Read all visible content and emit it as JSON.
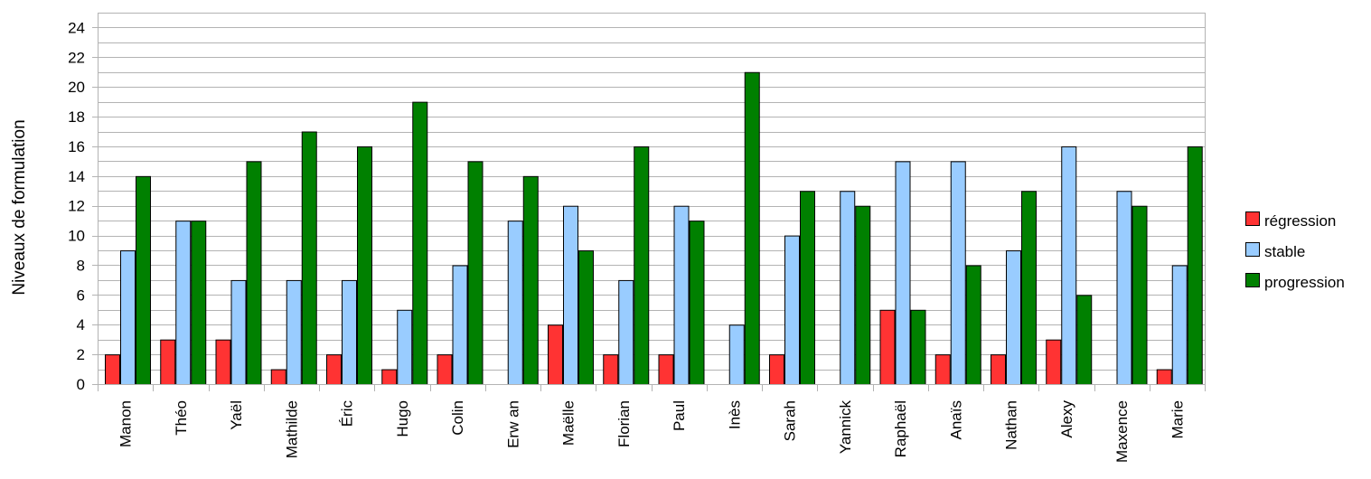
{
  "chart_data": {
    "type": "bar",
    "title": "",
    "xlabel": "",
    "ylabel": "Niveaux de formulation",
    "ylim": [
      0,
      25
    ],
    "yticks": [
      0,
      2,
      4,
      6,
      8,
      10,
      12,
      14,
      16,
      18,
      20,
      22,
      24
    ],
    "grid": true,
    "legend_position": "right",
    "categories": [
      "Manon",
      "Théo",
      "Yaël",
      "Mathilde",
      "Éric",
      "Hugo",
      "Colin",
      "Erw an",
      "Maëlle",
      "Florian",
      "Paul",
      "Inès",
      "Sarah",
      "Yannick",
      "Raphaël",
      "Anaïs",
      "Nathan",
      "Alexy",
      "Maxence",
      "Marie"
    ],
    "series": [
      {
        "name": "régression",
        "color": "#ff3333",
        "values": [
          2,
          3,
          3,
          1,
          2,
          1,
          2,
          0,
          4,
          2,
          2,
          0,
          2,
          0,
          5,
          2,
          2,
          3,
          0,
          1
        ]
      },
      {
        "name": "stable",
        "color": "#99ccff",
        "values": [
          9,
          11,
          7,
          7,
          7,
          5,
          8,
          11,
          12,
          7,
          12,
          4,
          10,
          13,
          15,
          15,
          9,
          16,
          13,
          8
        ]
      },
      {
        "name": "progression",
        "color": "#008000",
        "values": [
          14,
          11,
          15,
          17,
          16,
          19,
          15,
          14,
          9,
          16,
          11,
          21,
          13,
          12,
          5,
          8,
          13,
          6,
          12,
          16
        ]
      }
    ]
  }
}
